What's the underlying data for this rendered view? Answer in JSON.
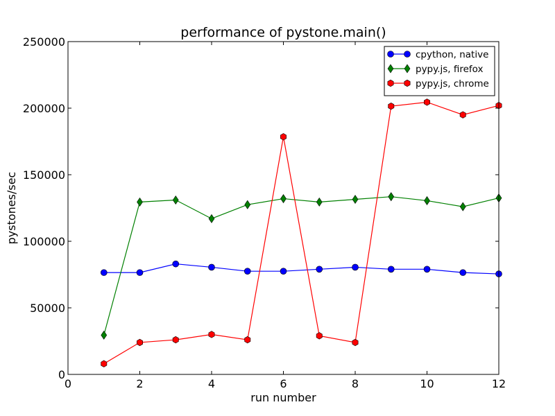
{
  "chart_data": {
    "type": "line",
    "title": "performance of pystone.main()",
    "xlabel": "run number",
    "ylabel": "pystones/sec",
    "xlim": [
      0,
      12
    ],
    "ylim": [
      0,
      250000
    ],
    "xticks": [
      0,
      2,
      4,
      6,
      8,
      10,
      12
    ],
    "yticks": [
      0,
      50000,
      100000,
      150000,
      200000,
      250000
    ],
    "grid": false,
    "legend_position": "top-right",
    "x": [
      1,
      2,
      3,
      4,
      5,
      6,
      7,
      8,
      9,
      10,
      11,
      12
    ],
    "series": [
      {
        "name": "cpython, native",
        "color": "#0000ff",
        "marker": "circle",
        "values": [
          76500,
          76500,
          83000,
          80500,
          77500,
          77500,
          79000,
          80500,
          79000,
          79000,
          76500,
          75500
        ]
      },
      {
        "name": "pypy.js, firefox",
        "color": "#008000",
        "marker": "diamond",
        "values": [
          29500,
          129500,
          131000,
          117000,
          127500,
          132000,
          129500,
          131500,
          133500,
          130500,
          126000,
          132500
        ]
      },
      {
        "name": "pypy.js, chrome",
        "color": "#ff0000",
        "marker": "hexagon",
        "values": [
          8000,
          24000,
          26000,
          30000,
          26000,
          178500,
          29000,
          24000,
          201500,
          204500,
          195000,
          202000
        ]
      }
    ]
  }
}
